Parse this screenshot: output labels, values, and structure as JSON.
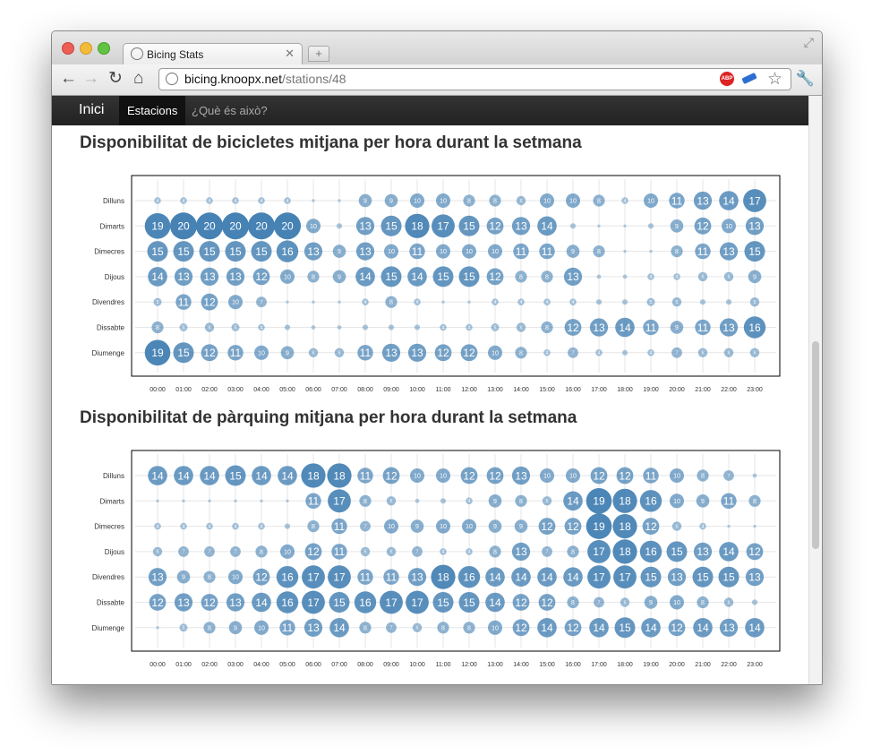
{
  "browser": {
    "tab_title": "Bicing Stats",
    "url_host": "bicing.knoopx.net",
    "url_path": "/stations/48",
    "extension_abp_label": "ABP",
    "icons": [
      "back-arrow-icon",
      "forward-arrow-icon",
      "reload-icon",
      "home-icon",
      "globe-icon",
      "adblock-icon",
      "extension-icon",
      "star-icon",
      "wrench-icon",
      "new-tab-icon",
      "close-tab-icon",
      "fullscreen-icon"
    ]
  },
  "navbar": {
    "brand": "Inici",
    "items": [
      {
        "label": "Estacions",
        "active": true
      },
      {
        "label": "¿Què és això?",
        "active": false
      }
    ]
  },
  "colors": {
    "bubble": "#4682b4",
    "navbar": "#222222"
  },
  "sections": [
    {
      "title": "Disponibilitat de bicicletes mitjana per hora durant la setmana"
    },
    {
      "title": "Disponibilitat de pàrquing mitjana per hora durant la setmana"
    }
  ],
  "chart_data": [
    {
      "type": "scatter",
      "days": [
        "Dilluns",
        "Dimarts",
        "Dimecres",
        "Dijous",
        "Divendres",
        "Dissabte",
        "Diumenge"
      ],
      "hours": [
        "00:00",
        "01:00",
        "02:00",
        "03:00",
        "04:00",
        "05:00",
        "06:00",
        "07:00",
        "08:00",
        "09:00",
        "10:00",
        "11:00",
        "12:00",
        "13:00",
        "14:00",
        "15:00",
        "16:00",
        "17:00",
        "18:00",
        "19:00",
        "20:00",
        "21:00",
        "22:00",
        "23:00"
      ],
      "values": [
        [
          4,
          4,
          4,
          4,
          4,
          4,
          1,
          1,
          9,
          9,
          10,
          10,
          8,
          8,
          6,
          10,
          10,
          8,
          4,
          10,
          11,
          13,
          14,
          17
        ],
        [
          19,
          20,
          20,
          20,
          20,
          20,
          10,
          3,
          13,
          15,
          18,
          17,
          15,
          12,
          13,
          14,
          3,
          1,
          1,
          3,
          9,
          12,
          10,
          13
        ],
        [
          15,
          15,
          15,
          15,
          15,
          16,
          13,
          9,
          13,
          10,
          11,
          10,
          10,
          10,
          11,
          11,
          9,
          8,
          1,
          1,
          8,
          11,
          13,
          15
        ],
        [
          14,
          13,
          13,
          13,
          12,
          10,
          8,
          9,
          14,
          15,
          14,
          15,
          15,
          12,
          8,
          8,
          13,
          2,
          2,
          4,
          4,
          6,
          6,
          9
        ],
        [
          5,
          11,
          12,
          10,
          7,
          1,
          1,
          1,
          4,
          8,
          4,
          1,
          1,
          4,
          4,
          4,
          4,
          3,
          3,
          5,
          6,
          3,
          3,
          6
        ],
        [
          8,
          5,
          6,
          5,
          4,
          3,
          2,
          2,
          3,
          3,
          3,
          4,
          4,
          5,
          6,
          8,
          12,
          13,
          14,
          11,
          9,
          11,
          13,
          16
        ],
        [
          19,
          15,
          12,
          11,
          10,
          9,
          6,
          6,
          11,
          13,
          13,
          12,
          12,
          10,
          8,
          4,
          7,
          4,
          3,
          4,
          7,
          6,
          6,
          6
        ]
      ]
    },
    {
      "type": "scatter",
      "days": [
        "Dilluns",
        "Dimarts",
        "Dimecres",
        "Dijous",
        "Divendres",
        "Dissabte",
        "Diumenge"
      ],
      "hours": [
        "00:00",
        "01:00",
        "02:00",
        "03:00",
        "04:00",
        "05:00",
        "06:00",
        "07:00",
        "08:00",
        "09:00",
        "10:00",
        "11:00",
        "12:00",
        "13:00",
        "14:00",
        "15:00",
        "16:00",
        "17:00",
        "18:00",
        "19:00",
        "20:00",
        "21:00",
        "22:00",
        "23:00"
      ],
      "values": [
        [
          14,
          14,
          14,
          15,
          14,
          14,
          18,
          18,
          11,
          12,
          10,
          10,
          12,
          12,
          13,
          10,
          10,
          12,
          12,
          11,
          10,
          8,
          7,
          2
        ],
        [
          1,
          1,
          1,
          1,
          1,
          1,
          11,
          17,
          8,
          6,
          2,
          3,
          4,
          9,
          8,
          6,
          14,
          19,
          18,
          16,
          10,
          9,
          11,
          8
        ],
        [
          4,
          4,
          4,
          4,
          4,
          3,
          8,
          11,
          7,
          10,
          9,
          10,
          10,
          9,
          9,
          12,
          12,
          19,
          18,
          12,
          6,
          4,
          1,
          1
        ],
        [
          6,
          7,
          7,
          7,
          8,
          10,
          12,
          11,
          6,
          6,
          7,
          4,
          4,
          8,
          13,
          7,
          8,
          17,
          18,
          16,
          15,
          13,
          14,
          12
        ],
        [
          13,
          9,
          8,
          10,
          12,
          16,
          17,
          17,
          11,
          11,
          13,
          18,
          16,
          14,
          14,
          14,
          14,
          17,
          17,
          15,
          13,
          15,
          15,
          13
        ],
        [
          12,
          13,
          12,
          13,
          14,
          16,
          17,
          15,
          16,
          17,
          17,
          15,
          15,
          14,
          12,
          12,
          8,
          7,
          6,
          9,
          10,
          8,
          6,
          3
        ],
        [
          1,
          5,
          8,
          9,
          10,
          11,
          13,
          14,
          8,
          7,
          6,
          8,
          8,
          10,
          12,
          14,
          12,
          14,
          15,
          14,
          12,
          14,
          13,
          14
        ]
      ]
    }
  ]
}
